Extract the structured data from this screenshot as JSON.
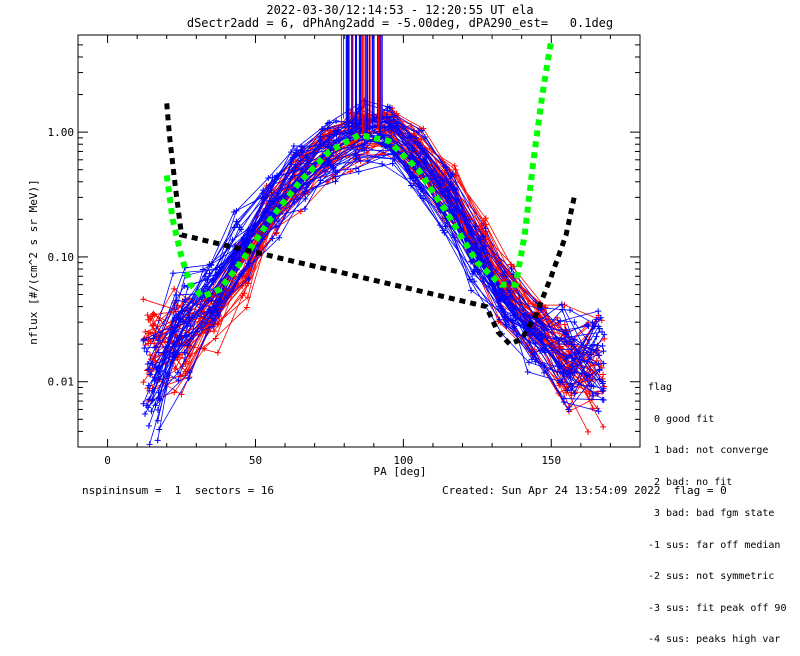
{
  "header": {
    "title_line1": "2022-03-30/12:14:53 - 12:20:55 UT ela",
    "title_line2": "dSectr2add = 6, dPhAng2add = -5.00deg, dPA290_est=   0.1deg"
  },
  "footer": {
    "left": "nspininsum =  1  sectors = 16",
    "right": "Created: Sun Apr 24 13:54:09 2022  flag = 0"
  },
  "legend": {
    "title": "flag",
    "entries": [
      " 0 good fit",
      " 1 bad: not converge",
      " 2 bad: no fit",
      " 3 bad: bad fgm state",
      "-1 sus: far off median",
      "-2 sus: not symmetric",
      "-3 sus: fit peak off 90",
      "-4 sus: peaks high var"
    ]
  },
  "colors": {
    "red_series": "#ff0000",
    "blue_series": "#0000ff",
    "green_fit": "#00ff00",
    "black_fit": "#000000"
  },
  "chart_data": {
    "type": "line",
    "xlabel": "PA [deg]",
    "ylabel": "nflux [#/(cm^2 s sr MeV)]",
    "xlim": [
      -10,
      180
    ],
    "ylim": [
      0.003,
      6.0
    ],
    "yscale": "log",
    "xticks": [
      0,
      50,
      100,
      150
    ],
    "yticks": [
      0.01,
      0.1,
      1.0
    ],
    "ytick_labels": [
      "0.01",
      "0.10",
      "1.00"
    ],
    "series": [
      {
        "color": "red",
        "style": "line-plus-markers",
        "x": [
          15,
          25,
          35,
          45,
          55,
          65,
          75,
          85,
          95,
          105,
          115,
          125,
          135,
          145,
          155,
          165
        ],
        "y": [
          0.015,
          0.02,
          0.03,
          0.07,
          0.2,
          0.4,
          0.65,
          0.85,
          0.9,
          0.6,
          0.3,
          0.12,
          0.05,
          0.025,
          0.015,
          0.012
        ]
      },
      {
        "color": "blue",
        "style": "line-plus-markers",
        "x": [
          15,
          25,
          35,
          45,
          55,
          65,
          75,
          85,
          95,
          105,
          115,
          125,
          135,
          145,
          155,
          165
        ],
        "y": [
          0.01,
          0.025,
          0.05,
          0.12,
          0.25,
          0.45,
          0.7,
          0.92,
          0.95,
          0.55,
          0.28,
          0.1,
          0.04,
          0.022,
          0.016,
          0.014
        ]
      },
      {
        "color": "green",
        "style": "dashed-thick",
        "x": [
          20,
          22,
          25,
          28,
          32,
          38,
          45,
          55,
          65,
          75,
          85,
          95,
          105,
          115,
          125,
          133,
          138,
          141,
          144,
          147,
          150
        ],
        "y": [
          0.45,
          0.2,
          0.1,
          0.06,
          0.048,
          0.055,
          0.09,
          0.2,
          0.4,
          0.7,
          0.95,
          0.85,
          0.5,
          0.22,
          0.09,
          0.06,
          0.06,
          0.15,
          0.6,
          2.0,
          5.5
        ]
      },
      {
        "color": "black",
        "style": "dashed-thick",
        "x": [
          20,
          21,
          23,
          25,
          128,
          132,
          136,
          140,
          145,
          150,
          155,
          158
        ],
        "y": [
          1.7,
          0.9,
          0.35,
          0.15,
          0.04,
          0.025,
          0.02,
          0.022,
          0.035,
          0.07,
          0.15,
          0.32
        ]
      }
    ]
  }
}
